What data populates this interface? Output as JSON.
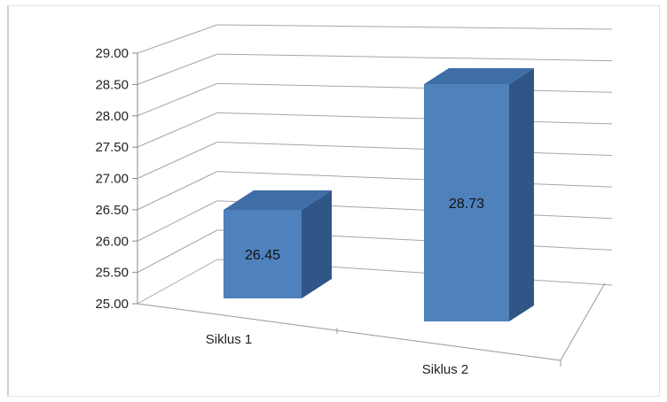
{
  "chart_data": {
    "type": "bar",
    "title": "",
    "xlabel": "",
    "ylabel": "",
    "categories": [
      "Siklus 1",
      "Siklus 2"
    ],
    "values": [
      26.45,
      28.73
    ],
    "data_labels": [
      "26.45",
      "28.73"
    ],
    "ylim": [
      25.0,
      29.0
    ],
    "y_ticks": [
      "25.00",
      "25.50",
      "26.00",
      "26.50",
      "27.00",
      "27.50",
      "28.00",
      "28.50",
      "29.00"
    ],
    "grid": true,
    "legend": "none",
    "style": "3d-column",
    "colors": {
      "bar_front": "#4f81bd",
      "bar_top": "#3f6ea6",
      "bar_side": "#2f5686",
      "grid": "#a6a6a6"
    }
  }
}
